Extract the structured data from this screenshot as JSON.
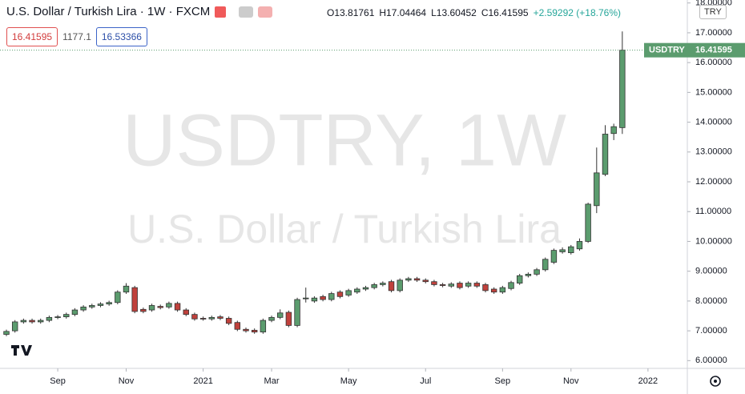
{
  "header": {
    "symbol": "U.S. Dollar / Turkish Lira · 1W · FXCM",
    "open": "O13.81761",
    "high": "H17.04464",
    "low": "L13.60452",
    "close": "C16.41595",
    "change": "+2.59292 (+18.76%)",
    "bid": "16.41595",
    "spread": "1177.1",
    "ask": "16.53366",
    "currency": "TRY"
  },
  "watermark": {
    "line1": "USDTRY, 1W",
    "line2": "U.S. Dollar / Turkish Lira"
  },
  "price_label": {
    "symbol": "USDTRY",
    "price": "16.41595"
  },
  "chart_data": {
    "type": "candlestick",
    "up_color": "#5b9c6e",
    "down_color": "#c0413c",
    "grid": false,
    "xlim": [
      -0.75,
      79.6
    ],
    "xticks": [
      {
        "value": 6,
        "label": "Sep"
      },
      {
        "value": 14,
        "label": "Nov"
      },
      {
        "value": 23,
        "label": "2021"
      },
      {
        "value": 31,
        "label": "Mar"
      },
      {
        "value": 40,
        "label": "May"
      },
      {
        "value": 49,
        "label": "Jul"
      },
      {
        "value": 58,
        "label": "Sep"
      },
      {
        "value": 66,
        "label": "Nov"
      },
      {
        "value": 75,
        "label": "2022"
      }
    ],
    "ylim": [
      5.74,
      18.1
    ],
    "yticks": [
      {
        "value": 6,
        "label": "6.00000"
      },
      {
        "value": 7,
        "label": "7.00000"
      },
      {
        "value": 8,
        "label": "8.00000"
      },
      {
        "value": 9,
        "label": "9.00000"
      },
      {
        "value": 10,
        "label": "10.00000"
      },
      {
        "value": 11,
        "label": "11.00000"
      },
      {
        "value": 12,
        "label": "12.00000"
      },
      {
        "value": 13,
        "label": "13.00000"
      },
      {
        "value": 14,
        "label": "14.00000"
      },
      {
        "value": 15,
        "label": "15.00000"
      },
      {
        "value": 16,
        "label": "16.00000"
      },
      {
        "value": 17,
        "label": "17.00000"
      },
      {
        "value": 18,
        "label": "18.00000"
      }
    ],
    "open": [
      6.88,
      7.0,
      7.3,
      7.35,
      7.3,
      7.35,
      7.45,
      7.47,
      7.55,
      7.7,
      7.8,
      7.85,
      7.9,
      7.95,
      8.3,
      8.45,
      7.72,
      7.7,
      7.82,
      7.8,
      7.92,
      7.7,
      7.55,
      7.42,
      7.4,
      7.47,
      7.42,
      7.28,
      7.05,
      7.02,
      6.96,
      7.35,
      7.45,
      7.62,
      7.18,
      8.08,
      8.0,
      8.15,
      8.05,
      8.3,
      8.2,
      8.3,
      8.4,
      8.45,
      8.55,
      8.65,
      8.35,
      8.7,
      8.75,
      8.7,
      8.65,
      8.55,
      8.5,
      8.6,
      8.5,
      8.6,
      8.55,
      8.4,
      8.3,
      8.42,
      8.6,
      8.85,
      8.9,
      9.05,
      9.3,
      9.65,
      9.62,
      9.75,
      10.0,
      11.2,
      12.25,
      13.62,
      13.81761
    ],
    "high": [
      7.04,
      7.36,
      7.41,
      7.41,
      7.41,
      7.51,
      7.53,
      7.61,
      7.76,
      7.86,
      7.91,
      7.96,
      8.01,
      8.36,
      8.6,
      8.51,
      7.78,
      7.91,
      7.88,
      7.98,
      7.98,
      7.76,
      7.61,
      7.48,
      7.51,
      7.53,
      7.48,
      7.34,
      7.11,
      7.08,
      7.41,
      7.51,
      7.72,
      7.68,
      8.11,
      8.45,
      8.16,
      8.21,
      8.31,
      8.36,
      8.41,
      8.46,
      8.51,
      8.61,
      8.66,
      8.71,
      8.76,
      8.81,
      8.81,
      8.76,
      8.71,
      8.61,
      8.63,
      8.66,
      8.66,
      8.66,
      8.61,
      8.46,
      8.51,
      8.68,
      8.91,
      8.96,
      9.11,
      9.46,
      9.76,
      9.8,
      9.88,
      10.1,
      11.3,
      13.15,
      13.9,
      13.95,
      17.04464
    ],
    "low": [
      6.82,
      6.94,
      7.24,
      7.24,
      7.24,
      7.29,
      7.39,
      7.41,
      7.49,
      7.64,
      7.74,
      7.79,
      7.84,
      7.89,
      8.24,
      7.59,
      7.59,
      7.64,
      7.72,
      7.74,
      7.64,
      7.49,
      7.34,
      7.34,
      7.34,
      7.36,
      7.19,
      6.99,
      6.94,
      6.9,
      6.9,
      7.29,
      7.39,
      7.12,
      7.12,
      7.95,
      7.94,
      7.99,
      7.99,
      8.09,
      8.14,
      8.24,
      8.34,
      8.39,
      8.49,
      8.29,
      8.29,
      8.64,
      8.64,
      8.59,
      8.49,
      8.46,
      8.44,
      8.39,
      8.44,
      8.44,
      8.29,
      8.24,
      8.24,
      8.36,
      8.54,
      8.79,
      8.84,
      8.99,
      9.24,
      9.59,
      9.56,
      9.69,
      9.95,
      10.95,
      12.19,
      13.4,
      13.60452
    ],
    "close": [
      6.98,
      7.3,
      7.35,
      7.3,
      7.35,
      7.45,
      7.47,
      7.55,
      7.7,
      7.8,
      7.85,
      7.9,
      7.95,
      8.3,
      8.5,
      7.65,
      7.65,
      7.85,
      7.78,
      7.92,
      7.7,
      7.55,
      7.4,
      7.4,
      7.45,
      7.42,
      7.25,
      7.05,
      7.0,
      6.96,
      7.35,
      7.45,
      7.6,
      7.18,
      8.05,
      8.1,
      8.1,
      8.05,
      8.25,
      8.15,
      8.35,
      8.4,
      8.45,
      8.55,
      8.6,
      8.35,
      8.7,
      8.75,
      8.7,
      8.65,
      8.55,
      8.52,
      8.57,
      8.45,
      8.6,
      8.5,
      8.35,
      8.3,
      8.45,
      8.62,
      8.85,
      8.9,
      9.05,
      9.4,
      9.7,
      9.72,
      9.82,
      10.0,
      11.25,
      12.3,
      13.6,
      13.85,
      16.41595
    ]
  }
}
